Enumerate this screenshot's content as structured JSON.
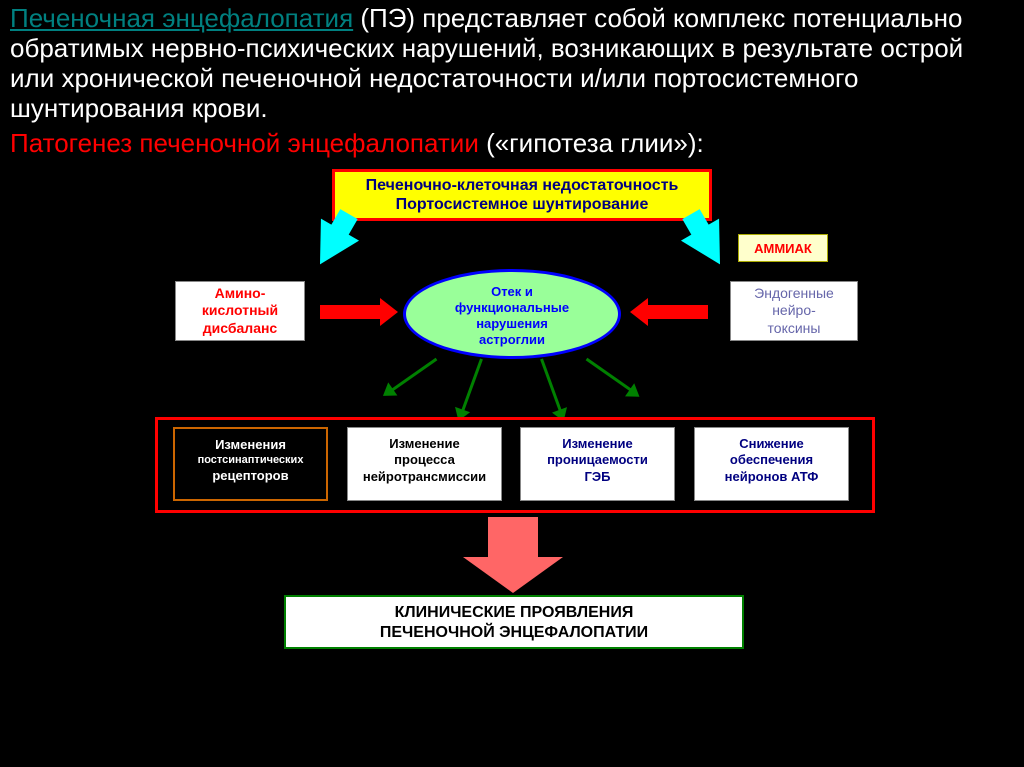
{
  "intro": {
    "term": "Печеночная энцефалопатия",
    "rest": " (ПЭ) представляет собой комплекс потенциально обратимых нервно-психических нарушений, возникающих в результате острой или хронической печеночной недостаточности и/или портосистемного шунтирования крови."
  },
  "subtitle": {
    "main": "Патогенез печеночной энцефалопатии ",
    "paren": "(«гипотеза глии»):"
  },
  "diagram": {
    "type": "flowchart",
    "background_color": "#000000",
    "top_box": {
      "line1": "Печеночно-клеточная недостаточность",
      "line2": "Портосистемное  шунтирование",
      "bg": "#ffff00",
      "border": "#ff0000",
      "text_color": "#000080",
      "fontsize": 16,
      "font_weight": "bold"
    },
    "ammonia": {
      "label": "АММИАК",
      "bg": "#ffffcc",
      "text_color": "#ff0000",
      "fontsize": 13
    },
    "left_box": {
      "line1": "Амино-",
      "line2": "кислотный",
      "line3": "дисбаланс",
      "bg": "#ffffff",
      "text_color": "#ff0000",
      "fontsize": 14
    },
    "right_box": {
      "line1": "Эндогенные",
      "line2": "нейро-",
      "line3": "токсины",
      "bg": "#ffffff",
      "text_color": "#6666aa",
      "fontsize": 14
    },
    "ellipse": {
      "line1": "Отек   и",
      "line2": "функциональные",
      "line3": "нарушения",
      "line4": "астроглии",
      "bg": "#99ff99",
      "border": "#0000ff",
      "text_color": "#0000ff",
      "fontsize": 13
    },
    "row_frame_border": "#ff0000",
    "row": [
      {
        "line1": "Изменения",
        "line2": "постсинаптических",
        "line3": "рецепторов",
        "bg": "#000000",
        "text_color": "#ffffff",
        "border": "#cc6600"
      },
      {
        "line1": "Изменение",
        "line2": "процесса",
        "line3": "нейротрансмиссии",
        "bg": "#ffffff",
        "text_color": "#000000",
        "border": "#888888"
      },
      {
        "line1": "Изменение",
        "line2": "проницаемости",
        "line3": "ГЭБ",
        "bg": "#ffffff",
        "text_color": "#000080",
        "border": "#888888"
      },
      {
        "line1": "Снижение",
        "line2": "обеспечения",
        "line3": "нейронов АТФ",
        "bg": "#ffffff",
        "text_color": "#000080",
        "border": "#888888"
      }
    ],
    "bottom_box": {
      "line1": "КЛИНИЧЕСКИЕ    ПРОЯВЛЕНИЯ",
      "line2": "ПЕЧЕНОЧНОЙ   ЭНЦЕФАЛОПАТИИ",
      "bg": "#ffffff",
      "border": "#008000",
      "text_color": "#000000",
      "fontsize": 16
    },
    "arrows": {
      "big_cyan": "#00ffff",
      "red": "#ff0000",
      "green": "#008000",
      "big_down": "#ff6666"
    }
  }
}
